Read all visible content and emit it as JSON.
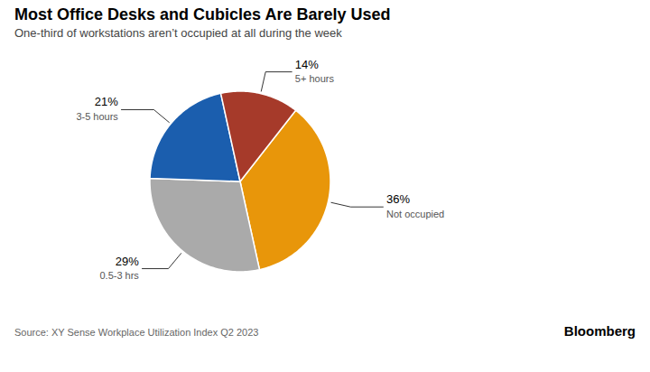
{
  "chart_data": {
    "type": "pie",
    "title": "Most Office Desks and Cubicles Are Barely Used",
    "subtitle": "One-third of workstations aren’t occupied at all during the week",
    "categories": [
      "Not occupied",
      "0.5-3 hrs",
      "3-5 hours",
      "5+ hours"
    ],
    "values": [
      36,
      29,
      21,
      14
    ],
    "value_labels": [
      "36%",
      "29%",
      "21%",
      "14%"
    ],
    "data_labels": true,
    "colors": [
      "#E8960A",
      "#AAAAAA",
      "#1B5EAE",
      "#A63A2A"
    ],
    "caption": "Source: XY Sense Workplace Utilization Index Q2 2023",
    "annotations": [
      "Bloomberg"
    ]
  }
}
